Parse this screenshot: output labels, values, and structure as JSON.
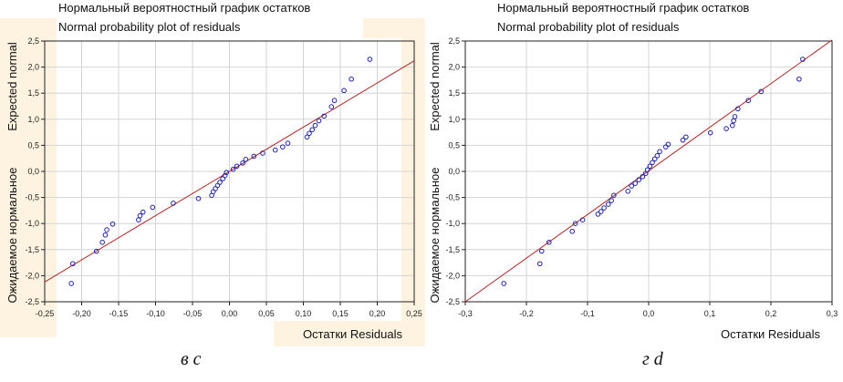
{
  "chart_data": [
    {
      "type": "scatter",
      "title_ru": "Нормальный  вероятностный график остатков",
      "title_en": "Normal probability plot of residuals",
      "xlabel": "Остатки Residuals",
      "ylabel_en": "Expected normal",
      "ylabel_ru": "Ожидаемое нормальное",
      "xlim": [
        -0.25,
        0.25
      ],
      "ylim": [
        -2.5,
        2.5
      ],
      "xticks": [
        "-0,25",
        "-0,20",
        "-0,15",
        "-0,10",
        "-0,05",
        "0,00",
        "0,05",
        "0,10",
        "0,15",
        "0,20",
        "0,25"
      ],
      "yticks": [
        "-2,5",
        "-2,0",
        "-1,5",
        "-1,0",
        "-0,5",
        "0,0",
        "0,5",
        "1,0",
        "1,5",
        "2,0",
        "2,5"
      ],
      "grid": true,
      "line": {
        "x": [
          -0.25,
          0.25
        ],
        "y": [
          -2.12,
          2.12
        ]
      },
      "points": [
        [
          -0.214,
          -2.15
        ],
        [
          -0.212,
          -1.77
        ],
        [
          -0.18,
          -1.53
        ],
        [
          -0.172,
          -1.36
        ],
        [
          -0.168,
          -1.22
        ],
        [
          -0.166,
          -1.12
        ],
        [
          -0.158,
          -1.01
        ],
        [
          -0.123,
          -0.93
        ],
        [
          -0.121,
          -0.85
        ],
        [
          -0.117,
          -0.78
        ],
        [
          -0.104,
          -0.69
        ],
        [
          -0.076,
          -0.61
        ],
        [
          -0.042,
          -0.52
        ],
        [
          -0.024,
          -0.46
        ],
        [
          -0.022,
          -0.39
        ],
        [
          -0.019,
          -0.33
        ],
        [
          -0.016,
          -0.27
        ],
        [
          -0.013,
          -0.21
        ],
        [
          -0.009,
          -0.14
        ],
        [
          -0.006,
          -0.08
        ],
        [
          -0.004,
          -0.02
        ],
        [
          0.005,
          0.04
        ],
        [
          0.01,
          0.1
        ],
        [
          0.018,
          0.16
        ],
        [
          0.022,
          0.23
        ],
        [
          0.033,
          0.29
        ],
        [
          0.045,
          0.35
        ],
        [
          0.062,
          0.41
        ],
        [
          0.072,
          0.47
        ],
        [
          0.079,
          0.54
        ],
        [
          0.105,
          0.66
        ],
        [
          0.108,
          0.73
        ],
        [
          0.112,
          0.8
        ],
        [
          0.116,
          0.88
        ],
        [
          0.121,
          0.97
        ],
        [
          0.128,
          1.06
        ],
        [
          0.138,
          1.24
        ],
        [
          0.142,
          1.36
        ],
        [
          0.155,
          1.55
        ],
        [
          0.165,
          1.77
        ],
        [
          0.19,
          2.15
        ]
      ],
      "colors": {
        "points": "#1f24a8",
        "line": "#b22222",
        "grid": "#d4d4d4"
      }
    },
    {
      "type": "scatter",
      "title_ru": "Нормальный  вероятностный график остатков",
      "title_en": "Normal probability plot of residuals",
      "xlabel": "Остатки Residuals",
      "ylabel_en": "Expected normal",
      "ylabel_ru": "Ожидаемое нормальное",
      "xlim": [
        -0.3,
        0.3
      ],
      "ylim": [
        -2.5,
        2.5
      ],
      "xticks": [
        "-0,3",
        "-0,2",
        "-0,1",
        "0,0",
        "0,1",
        "0,2",
        "0,3"
      ],
      "yticks": [
        "-2,5",
        "-2,0",
        "-1,5",
        "-1,0",
        "-0,5",
        "0,0",
        "0,5",
        "1,0",
        "1,5",
        "2,0",
        "2,5"
      ],
      "grid": true,
      "line": {
        "x": [
          -0.3,
          0.3
        ],
        "y": [
          -2.5,
          2.52
        ]
      },
      "points": [
        [
          -0.237,
          -2.15
        ],
        [
          -0.178,
          -1.77
        ],
        [
          -0.175,
          -1.53
        ],
        [
          -0.163,
          -1.36
        ],
        [
          -0.125,
          -1.15
        ],
        [
          -0.12,
          -1.0
        ],
        [
          -0.108,
          -0.93
        ],
        [
          -0.083,
          -0.82
        ],
        [
          -0.078,
          -0.77
        ],
        [
          -0.073,
          -0.7
        ],
        [
          -0.066,
          -0.63
        ],
        [
          -0.061,
          -0.56
        ],
        [
          -0.057,
          -0.46
        ],
        [
          -0.034,
          -0.38
        ],
        [
          -0.028,
          -0.28
        ],
        [
          -0.022,
          -0.23
        ],
        [
          -0.016,
          -0.16
        ],
        [
          -0.01,
          -0.1
        ],
        [
          -0.005,
          -0.04
        ],
        [
          -0.002,
          0.03
        ],
        [
          0.002,
          0.1
        ],
        [
          0.006,
          0.17
        ],
        [
          0.01,
          0.24
        ],
        [
          0.014,
          0.3
        ],
        [
          0.018,
          0.38
        ],
        [
          0.028,
          0.47
        ],
        [
          0.032,
          0.52
        ],
        [
          0.056,
          0.6
        ],
        [
          0.061,
          0.66
        ],
        [
          0.101,
          0.74
        ],
        [
          0.127,
          0.82
        ],
        [
          0.137,
          0.88
        ],
        [
          0.139,
          0.97
        ],
        [
          0.141,
          1.05
        ],
        [
          0.146,
          1.2
        ],
        [
          0.163,
          1.36
        ],
        [
          0.184,
          1.53
        ],
        [
          0.246,
          1.77
        ],
        [
          0.252,
          2.15
        ]
      ],
      "colors": {
        "points": "#1f24a8",
        "line": "#b22222",
        "grid": "#d4d4d4"
      }
    }
  ],
  "panel_labels": [
    "в c",
    "г d"
  ]
}
